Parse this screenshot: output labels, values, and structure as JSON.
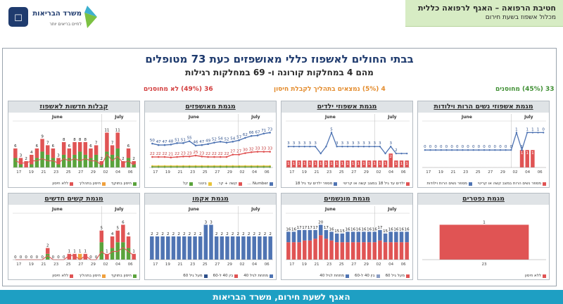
{
  "header": {
    "line1": "חטיבת הרפואה – האגף לרפואה כללית",
    "line2": "מכלול אשפוז בשעת חירום",
    "logo_text": "משרד הבריאות",
    "logo_tagline": "לחיים בריאים יותר"
  },
  "main": {
    "title": "בבתי החולים לאשפוז כללי מאושפזים כעת 73 מטופלים",
    "subtitle": "מהם 4 במחלקות קורונה ו- 69 במחלקות רגילות",
    "status_green": "33 (45%) מחוסנים",
    "status_orange": "4 (5%) נמצאים בתהליך לקבלת חיסון",
    "status_red": "36 (49%) לא מחוסנים"
  },
  "footer": {
    "text": "האגף לשעת חירום, משרד הבריאות"
  },
  "colors": {
    "green": "#5aa33c",
    "orange": "#f0a03c",
    "red": "#e05454",
    "blue": "#4f74b3",
    "yellow": "#e8c33a",
    "navy": "#2d4f8a"
  },
  "chart_data": [
    {
      "id": "p1",
      "type": "bar",
      "title": "קבלות חדשות לאשפוז",
      "months": [
        "June",
        "July"
      ],
      "ticks": [
        "17",
        "19",
        "21",
        "23",
        "25",
        "27",
        "29",
        "02",
        "04",
        "06"
      ],
      "stacked": true,
      "trend": true,
      "series": [
        {
          "name": "חיסון בתוקף",
          "color": "#5aa33c",
          "values": [
            3,
            1,
            0,
            1,
            3,
            5,
            4,
            3,
            1,
            4,
            3,
            4,
            5,
            4,
            3,
            4,
            1,
            5,
            4,
            6,
            0,
            3,
            1
          ]
        },
        {
          "name": "חיסון בתהליך",
          "color": "#f0a03c",
          "values": [
            0,
            0,
            0,
            0,
            0,
            0,
            0,
            0,
            0,
            0,
            0,
            0,
            0,
            0,
            0,
            0,
            0,
            0,
            0,
            0,
            0,
            0,
            0
          ]
        },
        {
          "name": "ללא חיסון",
          "color": "#e05454",
          "values": [
            3,
            2,
            2,
            3,
            3,
            4,
            3,
            3,
            2,
            4,
            3,
            4,
            3,
            4,
            3,
            3,
            1,
            6,
            3,
            5,
            2,
            3,
            1
          ]
        }
      ],
      "labels": [
        "6",
        "3",
        "2",
        "4",
        "6",
        "9",
        "7",
        "6",
        "3",
        "8",
        "6",
        "8",
        "8",
        "8",
        "6",
        "7",
        "2",
        "11",
        "7",
        "11",
        "2",
        "6",
        "2"
      ]
    },
    {
      "id": "p2",
      "type": "line",
      "title": "מגמת מאושפזים",
      "months": [
        "June",
        "July"
      ],
      "ticks": [
        "17",
        "19",
        "21",
        "23",
        "25",
        "27",
        "29",
        "02",
        "04",
        "06"
      ],
      "series": [
        {
          "name": "Number ...",
          "color": "#4f74b3",
          "values": [
            50,
            47,
            47,
            48,
            51,
            51,
            55,
            46,
            47,
            49,
            52,
            54,
            52,
            54,
            57,
            62,
            66,
            67,
            71,
            73
          ]
        },
        {
          "name": "קשה + קר.",
          "color": "#e05454",
          "values": [
            22,
            22,
            22,
            21,
            22,
            23,
            23,
            25,
            23,
            22,
            22,
            22,
            22,
            27,
            27,
            30,
            32,
            33,
            33,
            33
          ]
        },
        {
          "name": "בינוני",
          "color": "#e8c33a",
          "values": [
            3,
            3,
            3,
            3,
            3,
            3,
            3,
            3,
            3,
            3,
            3,
            3,
            3,
            3,
            3,
            3,
            3,
            3,
            3,
            3
          ]
        },
        {
          "name": "קל",
          "color": "#5aa33c",
          "values": [
            1,
            1,
            1,
            1,
            1,
            1,
            1,
            1,
            1,
            1,
            1,
            1,
            1,
            1,
            1,
            1,
            1,
            1,
            1,
            1
          ]
        }
      ],
      "labels_blue": [
        "50",
        "47",
        "47",
        "48",
        "51",
        "51",
        "55",
        "46",
        "47",
        "49",
        "52",
        "54",
        "52",
        "54",
        "57",
        "62",
        "66",
        "67",
        "71",
        "73"
      ],
      "labels_red": [
        "22",
        "22",
        "22",
        "21",
        "22",
        "23",
        "23",
        "25",
        "23",
        "22",
        "22",
        "22",
        "22",
        "27",
        "27",
        "30",
        "32",
        "33",
        "33",
        "33"
      ]
    },
    {
      "id": "p3",
      "type": "bar",
      "title": "מגמת אשפוזי ילדים",
      "months": [
        "June",
        "July"
      ],
      "ticks": [
        "17",
        "19",
        "21",
        "23",
        "25",
        "27",
        "29",
        "02",
        "04",
        "06"
      ],
      "stacked": false,
      "line_overlay": true,
      "series": [
        {
          "name": "ילדים עד גיל 18 במצב קשה או קריטי",
          "color": "#e05454",
          "values": [
            1,
            1,
            1,
            1,
            1,
            1,
            1,
            1,
            1,
            1,
            1,
            1,
            1,
            1,
            1,
            1,
            1,
            1,
            1,
            2,
            1,
            1,
            1
          ]
        },
        {
          "name": "מספר ילדים עד גיל 18",
          "color": "#4f74b3",
          "values": [
            3,
            3,
            3,
            3,
            3,
            3,
            2,
            3,
            5,
            3,
            3,
            3,
            3,
            3,
            3,
            3,
            3,
            3,
            2,
            3,
            2,
            2,
            2
          ]
        }
      ],
      "labels": [
        "3",
        "3",
        "3",
        "3",
        "3",
        "3",
        "",
        "",
        "5",
        "3",
        "3",
        "3",
        "3",
        "3",
        "3",
        "3",
        "3",
        "3",
        "",
        "3",
        "2",
        "",
        ""
      ]
    },
    {
      "id": "p4",
      "type": "bar",
      "title": "מגמת אשפוזי נשים הרות וילודות",
      "months": [
        "June",
        "July"
      ],
      "ticks": [
        "17",
        "19",
        "21",
        "23",
        "25",
        "27",
        "29",
        "02",
        "04",
        "06"
      ],
      "stacked": false,
      "line_overlay": true,
      "series": [
        {
          "name": "מספר נשים הרות במצב קשה או קריטי",
          "color": "#e05454",
          "values": [
            0,
            0,
            0,
            0,
            0,
            0,
            0,
            0,
            0,
            0,
            0,
            0,
            0,
            0,
            0,
            0,
            0,
            0,
            1,
            1,
            1,
            0,
            0
          ]
        },
        {
          "name": "מספר נשים הרות וילודות",
          "color": "#4f74b3",
          "values": [
            1,
            1,
            1,
            1,
            1,
            1,
            1,
            1,
            1,
            1,
            1,
            1,
            1,
            1,
            1,
            1,
            1,
            2,
            1,
            2,
            2,
            2,
            2
          ]
        }
      ],
      "labels": [
        "0",
        "0",
        "0",
        "0",
        "0",
        "0",
        "0",
        "0",
        "0",
        "0",
        "0",
        "0",
        "0",
        "0",
        "0",
        "0",
        "0",
        "1",
        "1",
        "1",
        "1",
        "1",
        "0"
      ]
    },
    {
      "id": "p5",
      "type": "bar",
      "title": "מגמת קשים חדשים",
      "months": [
        "June",
        "July"
      ],
      "ticks": [
        "17",
        "19",
        "21",
        "23",
        "25",
        "27",
        "29",
        "02",
        "04",
        "06"
      ],
      "stacked": true,
      "trend": true,
      "series": [
        {
          "name": "חיסון בתוקף",
          "color": "#5aa33c",
          "values": [
            0,
            0,
            0,
            0,
            0,
            0,
            1,
            0,
            0,
            0,
            0,
            0,
            0,
            0,
            0,
            0,
            3,
            0,
            2,
            3,
            3,
            2,
            0
          ]
        },
        {
          "name": "חיסון בתהליך",
          "color": "#f0a03c",
          "values": [
            0,
            0,
            0,
            0,
            0,
            0,
            0,
            0,
            0,
            0,
            0,
            0,
            1,
            0,
            0,
            0,
            0,
            0,
            0,
            0,
            0,
            0,
            0
          ]
        },
        {
          "name": "ללא חיסון",
          "color": "#e05454",
          "values": [
            0,
            0,
            0,
            0,
            0,
            0,
            1,
            0,
            0,
            0,
            1,
            1,
            0,
            1,
            0,
            0,
            2,
            1,
            2,
            2,
            3,
            2,
            1
          ]
        }
      ],
      "labels": [
        "0",
        "0",
        "0",
        "0",
        "0",
        "0",
        "2",
        "0",
        "0",
        "0",
        "1",
        "1",
        "1",
        "1",
        "0",
        "0",
        "5",
        "1",
        "4",
        "5",
        "6",
        "4",
        "1"
      ]
    },
    {
      "id": "p6",
      "type": "bar",
      "title": "מגמת אקמו",
      "months": [
        "June",
        "July"
      ],
      "ticks": [
        "17",
        "19",
        "21",
        "23",
        "25",
        "27",
        "29",
        "02",
        "04",
        "06"
      ],
      "stacked": true,
      "series": [
        {
          "name": "מתחת לגיל 40",
          "color": "#4f74b3",
          "values": [
            2,
            2,
            2,
            2,
            2,
            2,
            2,
            2,
            2,
            2,
            3,
            3,
            2,
            2,
            2,
            2,
            2,
            2,
            2,
            2,
            2,
            2,
            2
          ]
        },
        {
          "name": "בין 40 ל-60",
          "color": "#e05454",
          "values": [
            0,
            0,
            0,
            0,
            0,
            0,
            0,
            0,
            0,
            0,
            0,
            0,
            0,
            0,
            0,
            0,
            0,
            0,
            0,
            0,
            0,
            0,
            0
          ]
        },
        {
          "name": "מעל גיל 60",
          "color": "#2d4f8a",
          "values": [
            0,
            0,
            0,
            0,
            0,
            0,
            0,
            0,
            0,
            0,
            0,
            0,
            0,
            0,
            0,
            0,
            0,
            0,
            0,
            0,
            0,
            0,
            0
          ]
        }
      ],
      "labels": [
        "2",
        "2",
        "2",
        "2",
        "2",
        "2",
        "2",
        "2",
        "2",
        "2",
        "3",
        "3",
        "2",
        "2",
        "2",
        "2",
        "2",
        "2",
        "2",
        "2",
        "2",
        "2",
        "2"
      ]
    },
    {
      "id": "p7",
      "type": "bar",
      "title": "מגמת מונשמים",
      "months": [
        "June",
        "July"
      ],
      "ticks": [
        "17",
        "19",
        "21",
        "23",
        "25",
        "27",
        "29",
        "02",
        "04",
        "06"
      ],
      "stacked": true,
      "series": [
        {
          "name": "מעל גיל 60",
          "color": "#e05454",
          "values": [
            10,
            10,
            10,
            11,
            11,
            12,
            14,
            12,
            11,
            10,
            10,
            10,
            10,
            10,
            10,
            10,
            10,
            11,
            10,
            10,
            10,
            10,
            10
          ]
        },
        {
          "name": "בין 40 ל-60",
          "color": "#8a9dc4",
          "values": [
            0,
            0,
            0,
            0,
            0,
            0,
            0,
            0,
            0,
            0,
            0,
            0,
            0,
            0,
            0,
            0,
            0,
            0,
            0,
            0,
            0,
            0,
            0
          ]
        },
        {
          "name": "מתחת לגיל 40",
          "color": "#4f74b3",
          "values": [
            6,
            6,
            7,
            6,
            6,
            5,
            6,
            5,
            5,
            5,
            5,
            6,
            6,
            6,
            6,
            6,
            6,
            6,
            5,
            6,
            6,
            6,
            6
          ]
        }
      ],
      "labels": [
        "16",
        "16",
        "17",
        "17",
        "17",
        "17",
        "20",
        "17",
        "16",
        "15",
        "15",
        "16",
        "16",
        "16",
        "16",
        "16",
        "16",
        "17",
        "15",
        "16",
        "16",
        "16",
        "16"
      ]
    },
    {
      "id": "p8",
      "type": "bar",
      "title": "מגמת נפטרים",
      "months": [],
      "ticks": [
        "23"
      ],
      "stacked": true,
      "series": [
        {
          "name": "ללא חיסון",
          "color": "#e05454",
          "values": [
            1
          ]
        }
      ],
      "labels": [
        "1"
      ]
    }
  ]
}
